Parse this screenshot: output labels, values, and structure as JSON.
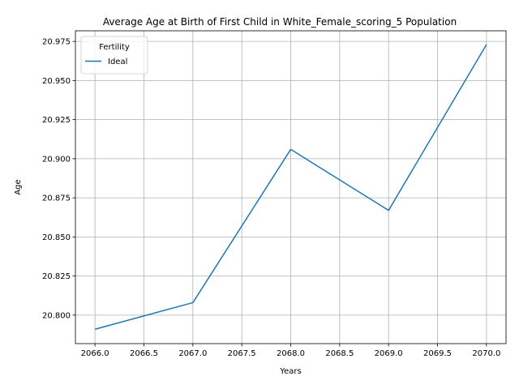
{
  "chart_data": {
    "type": "line",
    "title": "Average Age at Birth of First Child in White_Female_scoring_5 Population",
    "xlabel": "Years",
    "ylabel": "Age",
    "xlim": [
      2065.8,
      2070.2
    ],
    "ylim": [
      20.7818,
      20.9818
    ],
    "xticks": [
      2066.0,
      2066.5,
      2067.0,
      2067.5,
      2068.0,
      2068.5,
      2069.0,
      2069.5,
      2070.0
    ],
    "xtick_labels": [
      "2066.0",
      "2066.5",
      "2067.0",
      "2067.5",
      "2068.0",
      "2068.5",
      "2069.0",
      "2069.5",
      "2070.0"
    ],
    "yticks": [
      20.8,
      20.825,
      20.85,
      20.875,
      20.9,
      20.925,
      20.95,
      20.975
    ],
    "ytick_labels": [
      "20.800",
      "20.825",
      "20.850",
      "20.875",
      "20.900",
      "20.925",
      "20.950",
      "20.975"
    ],
    "grid": true,
    "legend": {
      "title": "Fertility",
      "placement": "upper-left"
    },
    "series": [
      {
        "name": "Ideal",
        "color": "#1f77b4",
        "x": [
          2066,
          2067,
          2068,
          2069,
          2070
        ],
        "y": [
          20.791,
          20.808,
          20.906,
          20.867,
          20.973
        ]
      }
    ]
  }
}
